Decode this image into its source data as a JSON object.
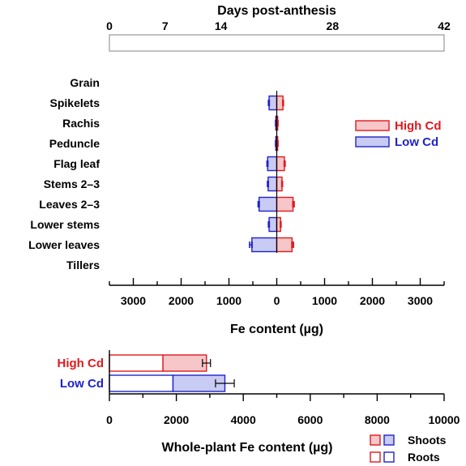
{
  "colors": {
    "high": "#e0191e",
    "high_fill": "#f7c6c8",
    "low": "#1f23c8",
    "low_fill": "#c8cbf3",
    "axis": "#000000",
    "bar_outline": "#9a9a9a"
  },
  "chart_data": [
    {
      "type": "bar",
      "orientation": "horizontal-diverging",
      "title": "Days post-anthesis",
      "top_axis": {
        "ticks": [
          0,
          7,
          14,
          28,
          42
        ],
        "range": [
          0,
          42
        ]
      },
      "xlabel": "Fe content (µg)",
      "x_tick_labels": [
        "3000",
        "2000",
        "1000",
        "0",
        "1000",
        "2000",
        "3000"
      ],
      "x_ticks": [
        -3000,
        -2000,
        -1000,
        0,
        1000,
        2000,
        3000
      ],
      "xlim": [
        -3500,
        3500
      ],
      "categories": [
        "Grain",
        "Spikelets",
        "Rachis",
        "Peduncle",
        "Flag leaf",
        "Stems 2–3",
        "Leaves 2–3",
        "Lower stems",
        "Lower leaves",
        "Tillers"
      ],
      "series": [
        {
          "name": "High Cd",
          "side": "right",
          "values": [
            0,
            130,
            20,
            20,
            160,
            110,
            340,
            80,
            320,
            0
          ],
          "errors": [
            0,
            10,
            5,
            5,
            15,
            10,
            25,
            10,
            30,
            0
          ]
        },
        {
          "name": "Low Cd",
          "side": "left",
          "values": [
            0,
            160,
            20,
            20,
            190,
            180,
            370,
            160,
            520,
            0
          ],
          "errors": [
            0,
            15,
            5,
            5,
            15,
            15,
            20,
            15,
            50,
            0
          ]
        }
      ],
      "legend": [
        "High Cd",
        "Low Cd"
      ],
      "legend_position": "right"
    },
    {
      "type": "bar",
      "orientation": "horizontal-stacked",
      "xlabel": "Whole-plant Fe content (µg)",
      "x_ticks": [
        0,
        2000,
        4000,
        6000,
        8000,
        10000
      ],
      "xlim": [
        0,
        10000
      ],
      "categories": [
        "High Cd",
        "Low Cd"
      ],
      "series": [
        {
          "name": "Roots",
          "values": [
            1600,
            1900
          ]
        },
        {
          "name": "Shoots",
          "values": [
            1300,
            1550
          ]
        }
      ],
      "totals": [
        2900,
        3450
      ],
      "errors": [
        120,
        280
      ],
      "legend": [
        "Shoots",
        "Roots"
      ],
      "legend_position": "bottom-right"
    }
  ]
}
